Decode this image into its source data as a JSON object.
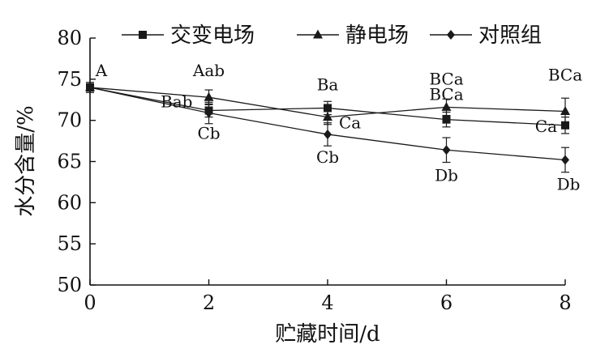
{
  "chart_data": {
    "type": "line",
    "xlabel": "贮藏时间/d",
    "ylabel": "水分含量/%",
    "xlim": [
      0,
      8
    ],
    "ylim": [
      50,
      80
    ],
    "xticks": [
      0,
      2,
      4,
      6,
      8
    ],
    "yticks": [
      50,
      55,
      60,
      65,
      70,
      75,
      80
    ],
    "grid": false,
    "legend_position": "top",
    "series": [
      {
        "name": "交变电场",
        "marker": "square",
        "color": "#1a1a1a",
        "x": [
          0,
          2,
          4,
          6,
          8
        ],
        "y": [
          74.0,
          71.2,
          71.5,
          70.1,
          69.4
        ],
        "err": [
          0.6,
          0.8,
          0.8,
          0.9,
          1.0
        ],
        "labels": [
          "A",
          "Bab",
          "Ba",
          "BCa",
          "Ca"
        ]
      },
      {
        "name": "静电场",
        "marker": "triangle",
        "color": "#1a1a1a",
        "x": [
          0,
          2,
          4,
          6,
          8
        ],
        "y": [
          74.0,
          72.8,
          70.4,
          71.6,
          71.1
        ],
        "err": [
          0.6,
          0.9,
          0.9,
          1.0,
          1.6
        ],
        "labels": [
          "",
          "Aab",
          "Ca",
          "BCa",
          "BCa"
        ]
      },
      {
        "name": "对照组",
        "marker": "diamond",
        "color": "#1a1a1a",
        "x": [
          0,
          2,
          4,
          6,
          8
        ],
        "y": [
          74.0,
          70.9,
          68.3,
          66.4,
          65.2
        ],
        "err": [
          0.6,
          1.3,
          1.4,
          1.5,
          1.5
        ],
        "labels": [
          "",
          "Cb",
          "Cb",
          "Db",
          "Db"
        ]
      }
    ]
  }
}
